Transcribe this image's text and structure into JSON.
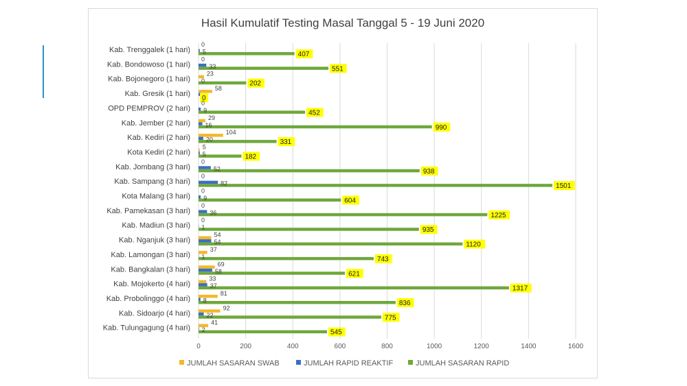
{
  "chart_data": {
    "type": "bar",
    "orientation": "horizontal",
    "title": "Hasil Kumulatif Testing Masal Tanggal 5 - 19 Juni 2020",
    "xlabel": "",
    "ylabel": "",
    "xlim": [
      0,
      1600
    ],
    "x_ticks": [
      0,
      200,
      400,
      600,
      800,
      1000,
      1200,
      1400,
      1600
    ],
    "grid": true,
    "legend_position": "bottom",
    "categories": [
      "Kab. Trenggalek (1 hari)",
      "Kab. Bondowoso (1 hari)",
      "Kab. Bojonegoro (1 hari)",
      "Kab. Gresik (1 hari)",
      "OPD PEMPROV (2 hari)",
      "Kab. Jember (2 hari)",
      "Kab. Kediri (2 hari)",
      "Kota Kediri (2 hari)",
      "Kab. Jombang (3 hari)",
      "Kab. Sampang (3 hari)",
      "Kota Malang (3 hari)",
      "Kab. Pamekasan (3 hari)",
      "Kab. Madiun (3 hari)",
      "Kab. Nganjuk (3 hari)",
      "Kab. Lamongan (3 hari)",
      "Kab. Bangkalan (3 hari)",
      "Kab. Mojokerto (4 hari)",
      "Kab. Probolinggo (4 hari)",
      "Kab. Sidoarjo (4 hari)",
      "Kab. Tulungagung  (4 hari)"
    ],
    "series": [
      {
        "name": "JUMLAH SASARAN SWAB",
        "color": "#f5b72a",
        "values": [
          0,
          0,
          23,
          58,
          0,
          29,
          104,
          5,
          0,
          0,
          0,
          0,
          0,
          54,
          37,
          69,
          33,
          81,
          92,
          41
        ]
      },
      {
        "name": "JUMLAH RAPID REAKTIF",
        "color": "#3a6fc4",
        "values": [
          5,
          33,
          0,
          8,
          9,
          16,
          20,
          5,
          52,
          82,
          9,
          36,
          1,
          54,
          1,
          58,
          37,
          8,
          22,
          2
        ]
      },
      {
        "name": "JUMLAH SASARAN RAPID",
        "color": "#6ea83c",
        "values": [
          407,
          551,
          202,
          0,
          452,
          990,
          331,
          182,
          938,
          1501,
          604,
          1225,
          935,
          1120,
          743,
          621,
          1317,
          836,
          775,
          545
        ]
      }
    ]
  }
}
